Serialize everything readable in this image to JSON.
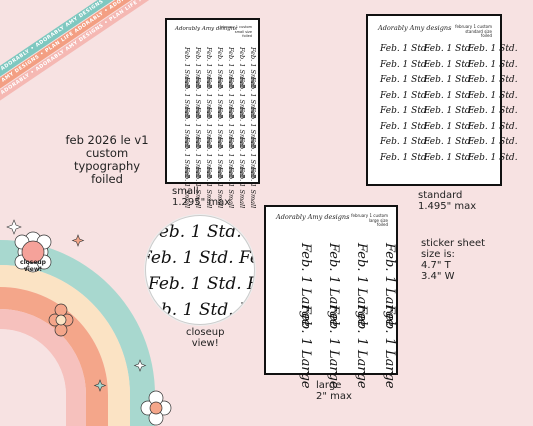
{
  "ribbons": {
    "text_top": "plan life adorably • adorably amy designs • plan life adorably",
    "text_bottom": "adorably amy designs • plan life adorably • adorably amy designs",
    "colors": [
      "#7fc8c0",
      "#f39f83",
      "#f5b8b3"
    ]
  },
  "product": {
    "line1": "feb 2026 le v1",
    "line2": "custom",
    "line3": "typography",
    "line4": "foiled"
  },
  "sheets": {
    "brand": "Adorably Amy designs",
    "small": {
      "label_line1": "february 1 custom",
      "label_line2": "small size",
      "label_line3": "foiled",
      "sticker_text": "Feb. 1 Small",
      "caption_line1": "small",
      "caption_line2": "1.295\" max"
    },
    "standard": {
      "label_line1": "february 1 custom",
      "label_line2": "standard size",
      "label_line3": "foiled",
      "sticker_text": "Feb. 1 Std.",
      "caption_line1": "standard",
      "caption_line2": "1.495\" max"
    },
    "large": {
      "label_line1": "february 1 custom",
      "label_line2": "large size",
      "label_line3": "foiled",
      "sticker_text": "Feb. 1 Large",
      "caption_line1": "large",
      "caption_line2": "2\" max"
    }
  },
  "closeup": {
    "sticker_text": "Feb. 1 Std.",
    "caption_line1": "closeup",
    "caption_line2": "view!",
    "flower_line1": "closeup",
    "flower_line2": "view!"
  },
  "size_info": {
    "line1": "sticker sheet",
    "line2": "size is:",
    "line3": "4.7\" T",
    "line4": "3.4\" W"
  }
}
